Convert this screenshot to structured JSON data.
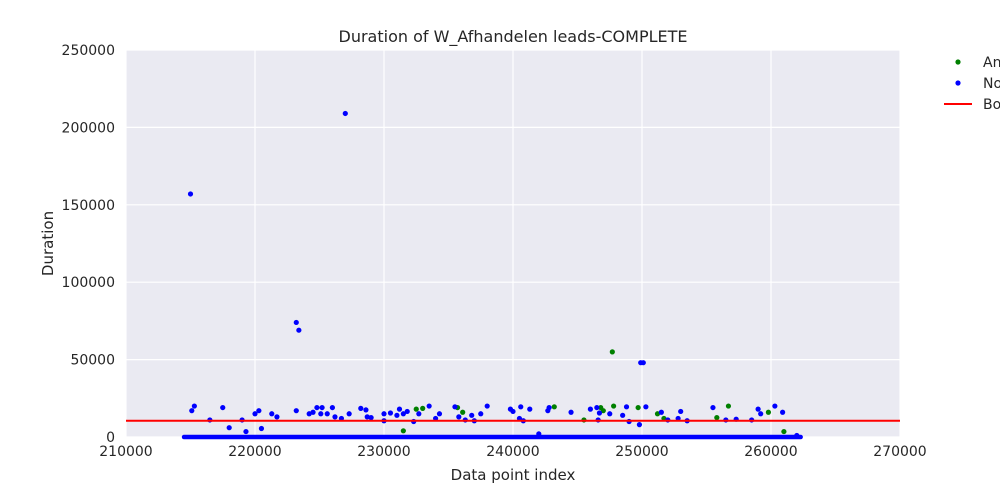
{
  "chart_data": {
    "type": "scatter",
    "title": "Duration of W_Afhandelen leads-COMPLETE",
    "xlabel": "Data point index",
    "ylabel": "Duration",
    "xlim": [
      210000,
      270000
    ],
    "ylim": [
      0,
      250000
    ],
    "x_ticks": [
      "210000",
      "220000",
      "230000",
      "240000",
      "250000",
      "260000",
      "270000"
    ],
    "y_ticks": [
      "0",
      "50000",
      "100000",
      "150000",
      "200000",
      "250000"
    ],
    "grid": true,
    "legend_position": "outside-top-right",
    "background_color": "#EAEAF2",
    "series": [
      {
        "name": "An",
        "color": "#008000",
        "points": [
          [
            232500,
            18000
          ],
          [
            233000,
            18500
          ],
          [
            235700,
            19000
          ],
          [
            236100,
            16000
          ],
          [
            243200,
            19500
          ],
          [
            245500,
            11000
          ],
          [
            246800,
            19000
          ],
          [
            247000,
            17000
          ],
          [
            247800,
            20000
          ],
          [
            247700,
            55000
          ],
          [
            249700,
            19000
          ],
          [
            251200,
            15000
          ],
          [
            251700,
            12000
          ],
          [
            255800,
            12500
          ],
          [
            256700,
            20000
          ],
          [
            259800,
            16000
          ],
          [
            261000,
            3500
          ],
          [
            231500,
            4000
          ]
        ]
      },
      {
        "name": "No",
        "color": "#0000FF",
        "points": [
          [
            215000,
            157000
          ],
          [
            215100,
            17000
          ],
          [
            215300,
            20000
          ],
          [
            216500,
            11000
          ],
          [
            217500,
            19000
          ],
          [
            218000,
            6000
          ],
          [
            219000,
            11000
          ],
          [
            219300,
            3500
          ],
          [
            220000,
            15000
          ],
          [
            220300,
            17000
          ],
          [
            220500,
            5500
          ],
          [
            221300,
            15000
          ],
          [
            221700,
            13000
          ],
          [
            223200,
            17000
          ],
          [
            223200,
            74000
          ],
          [
            223400,
            69000
          ],
          [
            224200,
            15000
          ],
          [
            224500,
            16000
          ],
          [
            224800,
            19000
          ],
          [
            225100,
            15000
          ],
          [
            225200,
            19000
          ],
          [
            225600,
            15000
          ],
          [
            226000,
            19000
          ],
          [
            226200,
            13000
          ],
          [
            226700,
            12000
          ],
          [
            227000,
            209000
          ],
          [
            227300,
            15000
          ],
          [
            228200,
            18500
          ],
          [
            228600,
            17500
          ],
          [
            228700,
            13000
          ],
          [
            229000,
            12500
          ],
          [
            230000,
            15000
          ],
          [
            230000,
            10500
          ],
          [
            230500,
            15500
          ],
          [
            231000,
            14000
          ],
          [
            231200,
            18000
          ],
          [
            231500,
            15000
          ],
          [
            231800,
            16500
          ],
          [
            232300,
            10000
          ],
          [
            232700,
            15000
          ],
          [
            233500,
            20000
          ],
          [
            234000,
            12000
          ],
          [
            234300,
            15000
          ],
          [
            235500,
            19500
          ],
          [
            235800,
            13000
          ],
          [
            236300,
            11000
          ],
          [
            236800,
            14000
          ],
          [
            237000,
            10500
          ],
          [
            237500,
            15000
          ],
          [
            238000,
            20000
          ],
          [
            239800,
            18000
          ],
          [
            240000,
            16500
          ],
          [
            240500,
            12000
          ],
          [
            240600,
            19500
          ],
          [
            240800,
            10500
          ],
          [
            241300,
            18000
          ],
          [
            242000,
            2000
          ],
          [
            242700,
            17000
          ],
          [
            242800,
            19000
          ],
          [
            244500,
            16000
          ],
          [
            246000,
            18000
          ],
          [
            246500,
            19000
          ],
          [
            246600,
            11000
          ],
          [
            246700,
            15500
          ],
          [
            247500,
            15000
          ],
          [
            248500,
            14000
          ],
          [
            248800,
            19500
          ],
          [
            249000,
            10000
          ],
          [
            249800,
            8000
          ],
          [
            249900,
            48000
          ],
          [
            250100,
            48000
          ],
          [
            250300,
            19500
          ],
          [
            251500,
            16000
          ],
          [
            252000,
            11000
          ],
          [
            252800,
            12000
          ],
          [
            253000,
            16500
          ],
          [
            253500,
            10500
          ],
          [
            255500,
            19000
          ],
          [
            256500,
            11000
          ],
          [
            257300,
            11500
          ],
          [
            258500,
            11000
          ],
          [
            259000,
            18000
          ],
          [
            259200,
            15000
          ],
          [
            260300,
            20000
          ],
          [
            260900,
            16000
          ],
          [
            262000,
            1000
          ]
        ]
      },
      {
        "name": "Bo",
        "color": "#FF0000",
        "line_y": 10500
      }
    ],
    "dense_baseline": {
      "x_start": 214500,
      "x_end": 262300,
      "y": 0,
      "color": "#0000FF"
    }
  }
}
